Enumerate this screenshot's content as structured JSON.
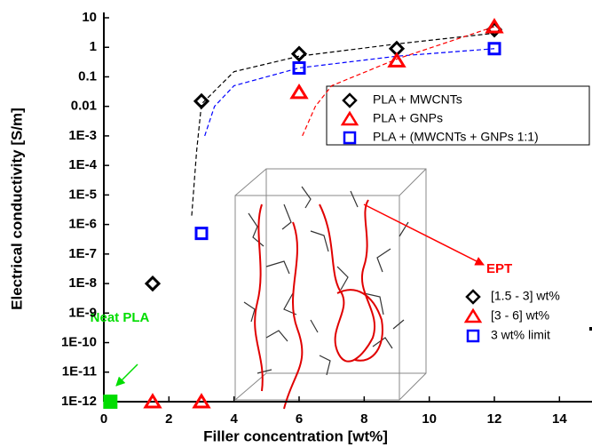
{
  "chart_data": {
    "type": "scatter",
    "log_y": true,
    "xlabel": "Filler concentration [wt%]",
    "ylabel": "Electrical conductivity [S/m]",
    "xlim": [
      0,
      15
    ],
    "xticks": [
      0,
      2,
      4,
      6,
      8,
      10,
      12,
      14
    ],
    "ylim": [
      1e-12,
      10
    ],
    "yticks": [
      10,
      1,
      0.1,
      0.01,
      {
        "value": 0.001,
        "label": "1E-3"
      },
      {
        "value": 0.0001,
        "label": "1E-4"
      },
      {
        "value": 1e-05,
        "label": "1E-5"
      },
      {
        "value": 1e-06,
        "label": "1E-6"
      },
      {
        "value": 1e-07,
        "label": "1E-7"
      },
      {
        "value": 1e-08,
        "label": "1E-8"
      },
      {
        "value": 1e-09,
        "label": "1E-9"
      },
      {
        "value": 1e-10,
        "label": "1E-10"
      },
      {
        "value": 1e-11,
        "label": "1E-11"
      },
      {
        "value": 1e-12,
        "label": "1E-12"
      }
    ],
    "series": [
      {
        "name": "PLA + MWCNTs",
        "color": "#000000",
        "marker": "diamond",
        "x": [
          1.5,
          3,
          6,
          9,
          12
        ],
        "values": [
          1e-08,
          0.015,
          0.6,
          0.9,
          4
        ]
      },
      {
        "name": "PLA + GNPs",
        "color": "#ff0000",
        "marker": "triangle",
        "x": [
          1.5,
          3,
          6,
          9,
          12
        ],
        "values": [
          1e-12,
          1e-12,
          0.03,
          0.35,
          5
        ]
      },
      {
        "name": "PLA + (MWCNTs + GNPs 1:1)",
        "color": "#0000ff",
        "marker": "square",
        "x": [
          3,
          6,
          12
        ],
        "values": [
          5e-07,
          0.2,
          0.9
        ]
      }
    ],
    "neat": {
      "label": "Neat PLA",
      "color": "#00dd00",
      "x": [
        0.2
      ],
      "values": [
        1e-12
      ]
    },
    "fits": [
      {
        "color": "#000000",
        "x": [
          2.7,
          2.85,
          3,
          4,
          6,
          9,
          12
        ],
        "values": [
          2e-06,
          0.0003,
          0.012,
          0.15,
          0.5,
          1.3,
          3
        ]
      },
      {
        "color": "#0000ff",
        "x": [
          3.1,
          3.4,
          4,
          6,
          9,
          12
        ],
        "values": [
          0.001,
          0.01,
          0.05,
          0.2,
          0.5,
          0.9
        ]
      },
      {
        "color": "#ff0000",
        "x": [
          6.1,
          6.5,
          7,
          9,
          12
        ],
        "values": [
          0.001,
          0.01,
          0.05,
          0.4,
          5
        ]
      }
    ],
    "legend": "upper right",
    "legend2": [
      {
        "label": "[1.5 - 3] wt%",
        "color": "#000000",
        "marker": "diamond"
      },
      {
        "label": "[3 - 6] wt%",
        "color": "#ff0000",
        "marker": "triangle"
      },
      {
        "label": "3 wt% limit",
        "color": "#0000ff",
        "marker": "square"
      }
    ],
    "annotation": "EPT"
  }
}
